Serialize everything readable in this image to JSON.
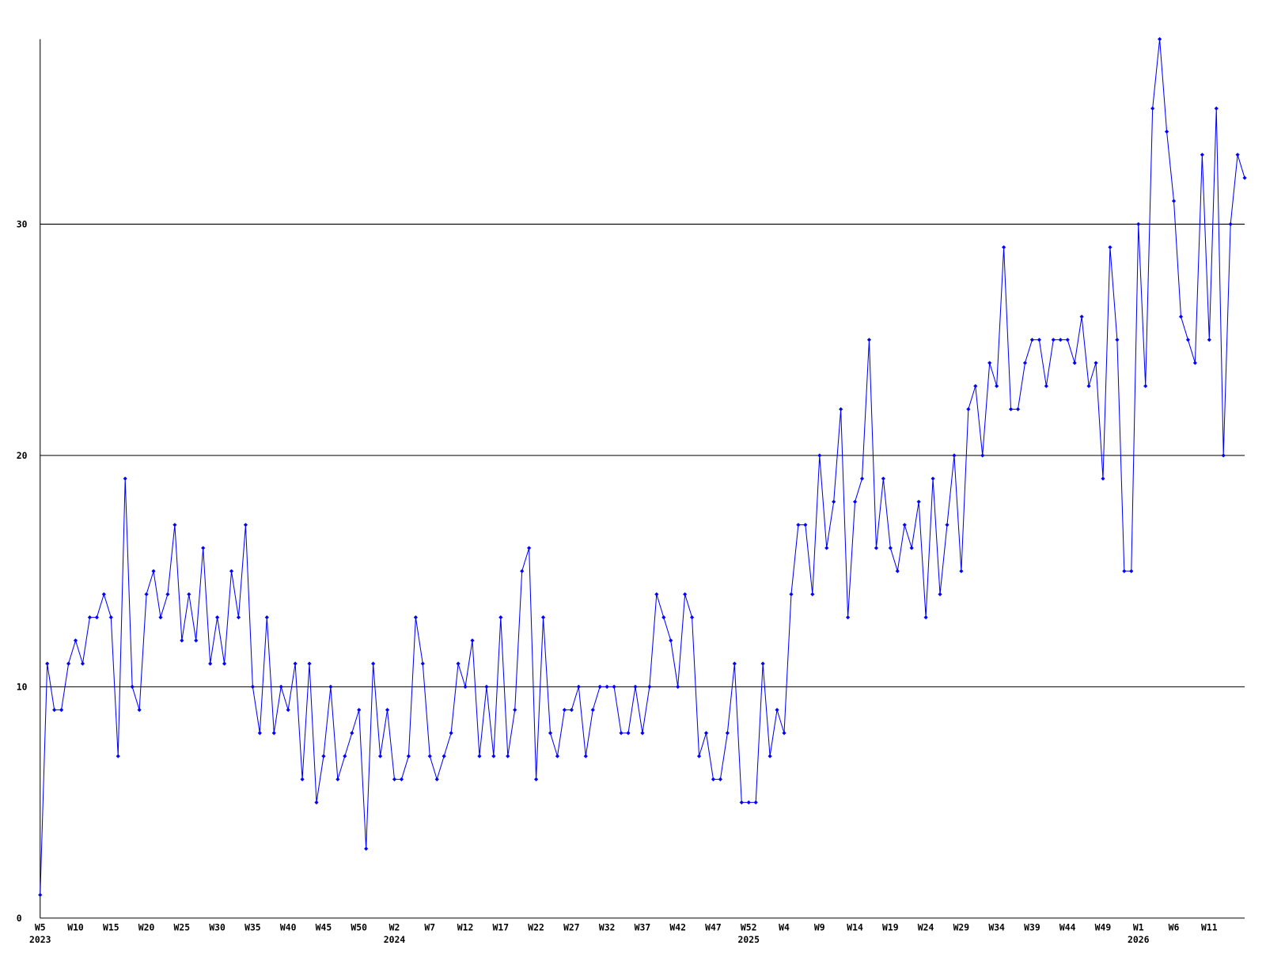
{
  "chart_data": {
    "type": "line",
    "categories": [
      "W5",
      null,
      null,
      null,
      null,
      "W10",
      null,
      null,
      null,
      null,
      "W15",
      null,
      null,
      null,
      null,
      "W20",
      null,
      null,
      null,
      null,
      "W25",
      null,
      null,
      null,
      null,
      "W30",
      null,
      null,
      null,
      null,
      "W35",
      null,
      null,
      null,
      null,
      "W40",
      null,
      null,
      null,
      null,
      "W45",
      null,
      null,
      null,
      null,
      "W50",
      null,
      null,
      null,
      null,
      "W2",
      null,
      null,
      null,
      null,
      "W7",
      null,
      null,
      null,
      null,
      "W12",
      null,
      null,
      null,
      null,
      "W17",
      null,
      null,
      null,
      null,
      "W22",
      null,
      null,
      null,
      null,
      "W27",
      null,
      null,
      null,
      null,
      "W32",
      null,
      null,
      null,
      null,
      "W37",
      null,
      null,
      null,
      null,
      "W42",
      null,
      null,
      null,
      null,
      "W47",
      null,
      null,
      null,
      null,
      "W52",
      null,
      null,
      null,
      null,
      "W4",
      null,
      null,
      null,
      null,
      "W9",
      null,
      null,
      null,
      null,
      "W14",
      null,
      null,
      null,
      null,
      "W19",
      null,
      null,
      null,
      null,
      "W24",
      null,
      null,
      null,
      null,
      "W29",
      null,
      null,
      null,
      null,
      "W34",
      null,
      null,
      null,
      null,
      "W39",
      null,
      null,
      null,
      null,
      "W44",
      null,
      null,
      null,
      null,
      "W49",
      null,
      null,
      null,
      null,
      "W1",
      null,
      null,
      null,
      null,
      "W6",
      null,
      null,
      null,
      null,
      "W11",
      null,
      null,
      null,
      null,
      null
    ],
    "category_years": [
      "2023",
      null,
      null,
      null,
      null,
      null,
      null,
      null,
      null,
      null,
      null,
      null,
      null,
      null,
      null,
      null,
      null,
      null,
      null,
      null,
      null,
      null,
      null,
      null,
      null,
      null,
      null,
      null,
      null,
      null,
      null,
      null,
      null,
      null,
      null,
      null,
      null,
      null,
      null,
      null,
      null,
      null,
      null,
      null,
      null,
      null,
      null,
      null,
      null,
      null,
      "2024",
      null,
      null,
      null,
      null,
      null,
      null,
      null,
      null,
      null,
      null,
      null,
      null,
      null,
      null,
      null,
      null,
      null,
      null,
      null,
      null,
      null,
      null,
      null,
      null,
      null,
      null,
      null,
      null,
      null,
      null,
      null,
      null,
      null,
      null,
      null,
      null,
      null,
      null,
      null,
      null,
      null,
      null,
      null,
      null,
      null,
      null,
      null,
      null,
      null,
      "2025",
      null,
      null,
      null,
      null,
      null,
      null,
      null,
      null,
      null,
      null,
      null,
      null,
      null,
      null,
      null,
      null,
      null,
      null,
      null,
      null,
      null,
      null,
      null,
      null,
      null,
      null,
      null,
      null,
      null,
      null,
      null,
      null,
      null,
      null,
      null,
      null,
      null,
      null,
      null,
      null,
      null,
      null,
      null,
      null,
      null,
      null,
      null,
      null,
      null,
      null,
      null,
      null,
      null,
      null,
      "2026",
      null,
      null,
      null,
      null,
      null,
      null,
      null,
      null,
      null,
      null,
      null,
      null,
      null,
      null,
      null
    ],
    "series": [
      {
        "color": "#0000ff",
        "values": [
          1,
          11,
          9,
          9,
          11,
          12,
          11,
          13,
          13,
          14,
          13,
          7,
          19,
          10,
          9,
          14,
          15,
          13,
          14,
          17,
          12,
          14,
          12,
          16,
          11,
          13,
          11,
          15,
          13,
          17,
          10,
          8,
          13,
          8,
          10,
          9,
          11,
          6,
          11,
          5,
          7,
          10,
          6,
          7,
          8,
          9,
          3,
          11,
          7,
          9,
          6,
          6,
          7,
          13,
          11,
          7,
          6,
          7,
          8,
          11,
          10,
          12,
          7,
          10,
          7,
          13,
          7,
          9,
          15,
          16,
          6,
          13,
          8,
          7,
          9,
          9,
          10,
          7,
          9,
          10,
          10,
          10,
          8,
          8,
          10,
          8,
          10,
          14,
          13,
          12,
          10,
          14,
          13,
          7,
          8,
          6,
          6,
          8,
          11,
          5,
          5,
          5,
          11,
          7,
          9,
          8,
          14,
          17,
          17,
          14,
          20,
          16,
          18,
          22,
          13,
          18,
          19,
          25,
          16,
          19,
          16,
          15,
          17,
          16,
          18,
          13,
          19,
          14,
          17,
          20,
          15,
          22,
          23,
          20,
          24,
          23,
          29,
          22,
          22,
          24,
          25,
          25,
          23,
          25,
          25,
          25,
          24,
          26,
          23,
          24,
          19,
          29,
          25,
          15,
          15,
          30,
          23,
          35,
          38,
          34,
          31,
          26,
          25,
          24,
          33,
          25,
          35,
          20,
          30,
          33,
          32
        ]
      }
    ],
    "ylim": [
      0,
      38
    ],
    "yticks": [
      0,
      10,
      20,
      30
    ],
    "grid": true
  }
}
